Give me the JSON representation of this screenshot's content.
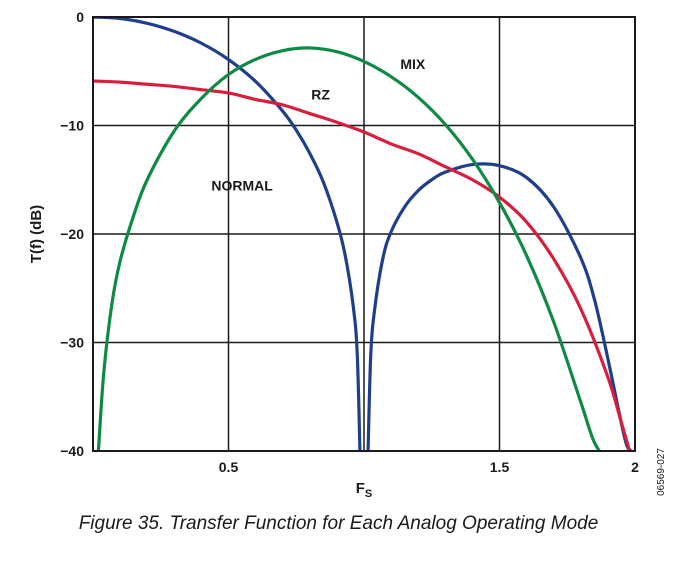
{
  "caption": "Figure 35. Transfer Function for Each Analog Operating Mode",
  "figure_id": "06569-027",
  "chart_data": {
    "type": "line",
    "xlabel": "F",
    "xlabel_sub": "S",
    "ylabel": "T(f) (dB)",
    "xlim": [
      0,
      2
    ],
    "ylim": [
      -40,
      0
    ],
    "x_ticks": [
      {
        "value": 0.5,
        "label": "0.5"
      },
      {
        "value": 1.5,
        "label": "1.5"
      },
      {
        "value": 2,
        "label": "2"
      }
    ],
    "y_ticks": [
      {
        "value": 0,
        "label": "0"
      },
      {
        "value": -10,
        "label": "−10"
      },
      {
        "value": -20,
        "label": "−20"
      },
      {
        "value": -30,
        "label": "−30"
      },
      {
        "value": -40,
        "label": "−40"
      }
    ],
    "grid": true,
    "series": [
      {
        "name": "NORMAL",
        "color": "#1f3f8c",
        "label_at": {
          "x": 0.55,
          "y": -16
        },
        "segments": [
          {
            "x": [
              0.0,
              0.1,
              0.2,
              0.3,
              0.4,
              0.5,
              0.6,
              0.7,
              0.75,
              0.8,
              0.85,
              0.9,
              0.93,
              0.96,
              0.975,
              0.985
            ],
            "y": [
              0.0,
              -0.14,
              -0.58,
              -1.33,
              -2.42,
              -3.92,
              -5.94,
              -8.68,
              -10.43,
              -12.57,
              -15.21,
              -18.9,
              -21.9,
              -26.6,
              -31.0,
              -40.0
            ]
          },
          {
            "x": [
              1.015,
              1.025,
              1.04,
              1.07,
              1.1,
              1.15,
              1.2,
              1.25,
              1.3,
              1.4,
              1.5,
              1.6,
              1.7,
              1.8,
              1.85,
              1.9,
              1.95,
              1.97,
              1.985
            ],
            "y": [
              -40.0,
              -31.1,
              -26.8,
              -22.2,
              -19.8,
              -17.5,
              -16.0,
              -15.0,
              -14.3,
              -13.6,
              -13.7,
              -14.8,
              -17.5,
              -22.2,
              -26.0,
              -31.5,
              -37.5,
              -39.5,
              -40.0
            ]
          }
        ]
      },
      {
        "name": "RZ",
        "color": "#d81e3c",
        "label_at": {
          "x": 0.84,
          "y": -7.6
        },
        "segments": [
          {
            "x": [
              0.0,
              0.1,
              0.2,
              0.3,
              0.4,
              0.5,
              0.6,
              0.7,
              0.8,
              0.9,
              1.0,
              1.1,
              1.2,
              1.3,
              1.4,
              1.5,
              1.6,
              1.7,
              1.8,
              1.9,
              1.95,
              1.98
            ],
            "y": [
              -5.9,
              -6.0,
              -6.2,
              -6.4,
              -6.7,
              -7.0,
              -7.6,
              -8.1,
              -8.9,
              -9.7,
              -10.6,
              -11.7,
              -12.6,
              -13.8,
              -15.0,
              -16.6,
              -18.9,
              -22.3,
              -26.9,
              -33.2,
              -37.4,
              -40.0
            ]
          }
        ]
      },
      {
        "name": "MIX",
        "color": "#0f8a45",
        "label_at": {
          "x": 1.18,
          "y": -4.8
        },
        "segments": [
          {
            "x": [
              0.02,
              0.04,
              0.07,
              0.1,
              0.15,
              0.2,
              0.3,
              0.4,
              0.5,
              0.6,
              0.7,
              0.8,
              0.9,
              1.0,
              1.1,
              1.2,
              1.3,
              1.4,
              1.5,
              1.6,
              1.7,
              1.8,
              1.85,
              1.9
            ],
            "y": [
              -40.0,
              -32.7,
              -26.4,
              -22.5,
              -18.3,
              -15.0,
              -10.5,
              -7.5,
              -5.3,
              -3.9,
              -3.1,
              -2.85,
              -3.2,
              -4.1,
              -5.5,
              -7.4,
              -9.9,
              -13.1,
              -17.1,
              -22.0,
              -28.1,
              -35.5,
              -39.2,
              -41.0
            ]
          }
        ]
      }
    ]
  }
}
